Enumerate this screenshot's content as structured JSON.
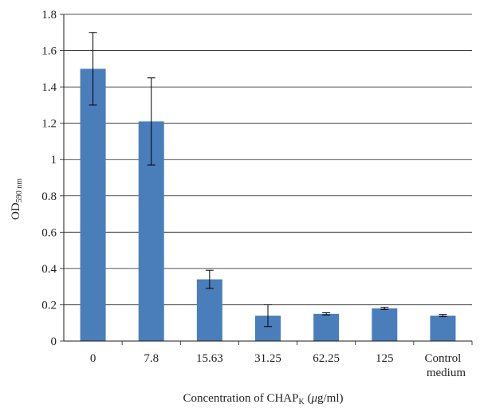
{
  "chart_data": {
    "type": "bar",
    "categories": [
      "0",
      "7.8",
      "15.63",
      "31.25",
      "62.25",
      "125",
      "Control medium"
    ],
    "values": [
      1.5,
      1.21,
      0.34,
      0.14,
      0.15,
      0.18,
      0.14
    ],
    "errors": [
      0.2,
      0.24,
      0.05,
      0.06,
      0.006,
      0.006,
      0.006
    ],
    "ylim": [
      0,
      1.8
    ],
    "yticks": [
      "0",
      "0.2",
      "0.4",
      "0.6",
      "0.8",
      "1",
      "1.2",
      "1.4",
      "1.6",
      "1.8"
    ],
    "ylabel": {
      "main": "OD",
      "sub": "590 nm"
    },
    "xlabel": {
      "prefix": "Concentration of CHAP",
      "sub": "K",
      "suffix": " (",
      "mu": "μ",
      "unit": "g/ml)"
    },
    "grid": "horizontal",
    "bar_color": "#4a7ebb",
    "grid_color": "#1a1a1a"
  }
}
